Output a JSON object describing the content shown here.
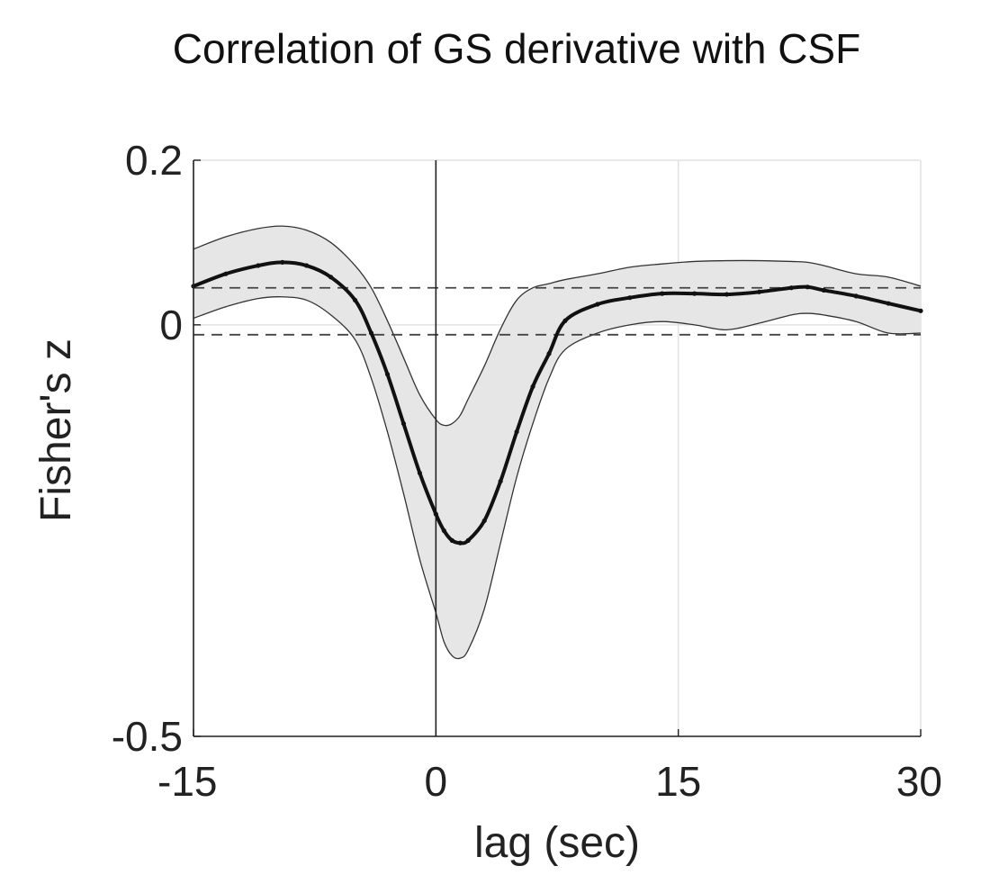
{
  "chart_data": {
    "type": "line",
    "title": "Correlation of GS derivative with CSF",
    "xlabel": "lag (sec)",
    "ylabel": "Fisher's z",
    "xlim": [
      -15,
      30
    ],
    "ylim": [
      -0.5,
      0.2
    ],
    "xticks": [
      -15,
      0,
      15,
      30
    ],
    "xtick_labels": [
      "-15",
      "0",
      "15",
      "30"
    ],
    "yticks": [
      -0.5,
      0,
      0.2
    ],
    "ytick_labels": [
      "-0.5",
      "0",
      "0.2"
    ],
    "grid": true,
    "vertical_reference_line_x": 0,
    "threshold_lines": [
      0.045,
      -0.012
    ],
    "series": [
      {
        "name": "mean",
        "x": [
          -15,
          -13,
          -11,
          -9.5,
          -8,
          -6.5,
          -5,
          -4,
          -3,
          -2,
          -1,
          0,
          0.5,
          1,
          1.5,
          2,
          3,
          4,
          5,
          6,
          7,
          8,
          10,
          12,
          14,
          16,
          18,
          20,
          22,
          23,
          24,
          26,
          28,
          30
        ],
        "values": [
          0.047,
          0.062,
          0.072,
          0.076,
          0.072,
          0.058,
          0.03,
          -0.01,
          -0.06,
          -0.12,
          -0.18,
          -0.23,
          -0.25,
          -0.262,
          -0.265,
          -0.262,
          -0.238,
          -0.19,
          -0.13,
          -0.075,
          -0.035,
          0.005,
          0.025,
          0.033,
          0.038,
          0.038,
          0.037,
          0.04,
          0.045,
          0.046,
          0.042,
          0.035,
          0.026,
          0.017
        ]
      },
      {
        "name": "upper_bound",
        "x": [
          -15,
          -13,
          -11,
          -9.5,
          -8,
          -6.5,
          -5,
          -4,
          -3,
          -2,
          -1,
          0,
          0.5,
          1,
          1.5,
          2,
          3,
          4,
          5,
          6,
          7,
          8,
          10,
          12,
          14,
          16,
          18,
          20,
          22,
          23,
          24,
          26,
          28,
          30
        ],
        "values": [
          0.092,
          0.107,
          0.117,
          0.12,
          0.115,
          0.1,
          0.072,
          0.045,
          0.005,
          -0.04,
          -0.085,
          -0.115,
          -0.122,
          -0.12,
          -0.11,
          -0.09,
          -0.05,
          -0.005,
          0.03,
          0.045,
          0.05,
          0.055,
          0.062,
          0.07,
          0.074,
          0.077,
          0.078,
          0.078,
          0.077,
          0.076,
          0.072,
          0.062,
          0.058,
          0.047
        ]
      },
      {
        "name": "lower_bound",
        "x": [
          -15,
          -13,
          -11,
          -9.5,
          -8,
          -6.5,
          -5,
          -4,
          -3,
          -2,
          -1,
          0,
          0.5,
          1,
          1.5,
          2,
          3,
          4,
          5,
          6,
          7,
          8,
          10,
          12,
          14,
          16,
          18,
          20,
          22,
          23,
          24,
          26,
          28,
          30
        ],
        "values": [
          0.008,
          0.022,
          0.032,
          0.034,
          0.03,
          0.012,
          -0.018,
          -0.065,
          -0.13,
          -0.205,
          -0.285,
          -0.35,
          -0.385,
          -0.402,
          -0.405,
          -0.395,
          -0.345,
          -0.265,
          -0.185,
          -0.12,
          -0.065,
          -0.03,
          -0.01,
          0.0,
          0.004,
          0.0,
          -0.006,
          0.002,
          0.012,
          0.014,
          0.012,
          0.004,
          -0.01,
          -0.01
        ]
      }
    ]
  }
}
